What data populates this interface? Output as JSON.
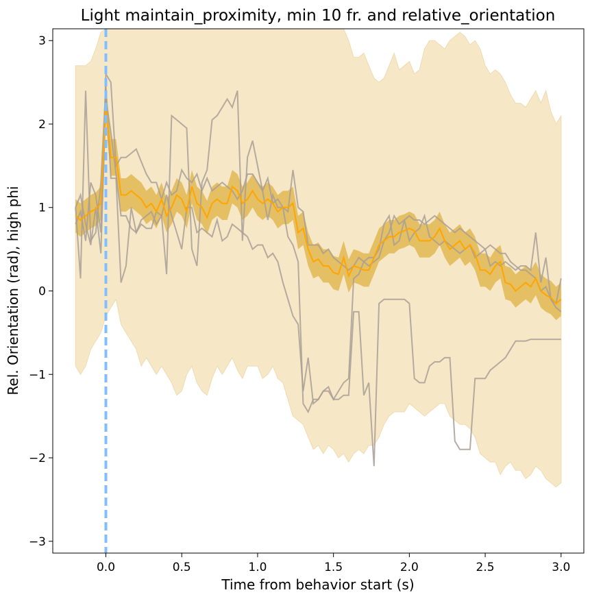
{
  "chart_data": {
    "type": "line",
    "title": "Light maintain_proximity, min 10 fr.  and  relative_orientation",
    "xlabel": "Time from behavior start (s)",
    "ylabel": "Rel. Orientation (rad), high phi",
    "xlim": [
      -0.35,
      3.15
    ],
    "ylim": [
      -3.14159,
      3.14159
    ],
    "x_ticks": [
      0.0,
      0.5,
      1.0,
      1.5,
      2.0,
      2.5,
      3.0
    ],
    "x_tick_labels": [
      "0.0",
      "0.5",
      "1.0",
      "1.5",
      "2.0",
      "2.5",
      "3.0"
    ],
    "y_ticks": [
      -3,
      -2,
      -1,
      0,
      1,
      2,
      3
    ],
    "y_tick_labels": [
      "−3",
      "−2",
      "−1",
      "0",
      "1",
      "2",
      "3"
    ],
    "grid": false,
    "vline_x": 0.0,
    "colors": {
      "mean": "#ffa500",
      "sem_band": "#daa520",
      "sd_band": "#f5e6c4",
      "individual": "#a89f95",
      "vline": "#80bfff"
    },
    "x": [
      -0.2,
      -0.167,
      -0.133,
      -0.1,
      -0.067,
      -0.033,
      0.0,
      0.033,
      0.067,
      0.1,
      0.133,
      0.167,
      0.2,
      0.233,
      0.267,
      0.3,
      0.333,
      0.367,
      0.4,
      0.433,
      0.467,
      0.5,
      0.533,
      0.567,
      0.6,
      0.633,
      0.667,
      0.7,
      0.733,
      0.767,
      0.8,
      0.833,
      0.867,
      0.9,
      0.933,
      0.967,
      1.0,
      1.033,
      1.067,
      1.1,
      1.133,
      1.167,
      1.2,
      1.233,
      1.267,
      1.3,
      1.333,
      1.367,
      1.4,
      1.433,
      1.467,
      1.5,
      1.533,
      1.567,
      1.6,
      1.633,
      1.667,
      1.7,
      1.733,
      1.767,
      1.8,
      1.833,
      1.867,
      1.9,
      1.933,
      1.967,
      2.0,
      2.033,
      2.067,
      2.1,
      2.133,
      2.167,
      2.2,
      2.233,
      2.267,
      2.3,
      2.333,
      2.367,
      2.4,
      2.433,
      2.467,
      2.5,
      2.533,
      2.567,
      2.6,
      2.633,
      2.667,
      2.7,
      2.733,
      2.767,
      2.8,
      2.833,
      2.867,
      2.9,
      2.933,
      2.967,
      3.0
    ],
    "mean": [
      0.9,
      0.85,
      0.9,
      0.95,
      0.98,
      1.05,
      2.25,
      1.6,
      1.6,
      1.15,
      1.15,
      1.2,
      1.15,
      1.1,
      1.0,
      1.05,
      0.95,
      1.1,
      0.9,
      1.0,
      1.15,
      1.1,
      0.95,
      1.25,
      1.05,
      1.0,
      0.88,
      1.05,
      1.1,
      1.05,
      1.05,
      1.25,
      1.2,
      1.05,
      1.1,
      1.2,
      1.1,
      1.05,
      1.1,
      1.05,
      0.95,
      1.0,
      1.0,
      1.05,
      0.7,
      0.75,
      0.5,
      0.35,
      0.38,
      0.3,
      0.3,
      0.22,
      0.2,
      0.4,
      0.18,
      0.3,
      0.28,
      0.25,
      0.25,
      0.4,
      0.55,
      0.6,
      0.65,
      0.65,
      0.7,
      0.72,
      0.75,
      0.72,
      0.6,
      0.6,
      0.6,
      0.65,
      0.75,
      0.6,
      0.5,
      0.55,
      0.6,
      0.5,
      0.55,
      0.45,
      0.25,
      0.25,
      0.2,
      0.3,
      0.35,
      0.1,
      0.08,
      0.0,
      0.05,
      0.1,
      0.05,
      0.15,
      0.0,
      -0.05,
      -0.08,
      -0.15,
      -0.1
    ],
    "sem": [
      0.2,
      0.2,
      0.2,
      0.2,
      0.2,
      0.2,
      0.25,
      0.22,
      0.22,
      0.2,
      0.2,
      0.2,
      0.2,
      0.2,
      0.2,
      0.2,
      0.2,
      0.2,
      0.2,
      0.2,
      0.2,
      0.2,
      0.2,
      0.2,
      0.2,
      0.2,
      0.2,
      0.2,
      0.2,
      0.2,
      0.2,
      0.2,
      0.2,
      0.2,
      0.2,
      0.2,
      0.2,
      0.2,
      0.2,
      0.2,
      0.2,
      0.2,
      0.2,
      0.2,
      0.2,
      0.2,
      0.2,
      0.2,
      0.2,
      0.2,
      0.2,
      0.2,
      0.2,
      0.2,
      0.2,
      0.2,
      0.2,
      0.2,
      0.2,
      0.2,
      0.2,
      0.2,
      0.2,
      0.2,
      0.2,
      0.2,
      0.2,
      0.2,
      0.2,
      0.2,
      0.2,
      0.2,
      0.2,
      0.2,
      0.2,
      0.2,
      0.2,
      0.2,
      0.2,
      0.2,
      0.2,
      0.2,
      0.2,
      0.2,
      0.2,
      0.2,
      0.2,
      0.2,
      0.2,
      0.2,
      0.2,
      0.2,
      0.2,
      0.2,
      0.2,
      0.2,
      0.2
    ],
    "sd_upper": [
      2.7,
      2.7,
      2.7,
      2.75,
      2.9,
      3.1,
      3.2,
      3.2,
      3.2,
      3.2,
      3.2,
      3.2,
      3.2,
      3.2,
      3.2,
      3.2,
      3.2,
      3.2,
      3.2,
      3.2,
      3.2,
      3.2,
      3.2,
      3.2,
      3.2,
      3.2,
      3.2,
      3.2,
      3.2,
      3.2,
      3.2,
      3.2,
      3.2,
      3.2,
      3.2,
      3.2,
      3.2,
      3.2,
      3.2,
      3.2,
      3.2,
      3.2,
      3.2,
      3.2,
      3.2,
      3.2,
      3.2,
      3.2,
      3.2,
      3.2,
      3.2,
      3.2,
      3.2,
      3.2,
      3.0,
      2.8,
      2.8,
      2.85,
      2.7,
      2.55,
      2.5,
      2.55,
      2.7,
      2.85,
      2.65,
      2.7,
      2.75,
      2.6,
      2.65,
      2.9,
      3.0,
      3.0,
      2.95,
      2.9,
      3.0,
      3.05,
      3.1,
      3.05,
      2.95,
      3.0,
      2.9,
      2.7,
      2.6,
      2.65,
      2.6,
      2.5,
      2.35,
      2.25,
      2.25,
      2.2,
      2.3,
      2.4,
      2.25,
      2.4,
      2.15,
      2.0,
      2.1
    ],
    "sd_lower": [
      -0.9,
      -1.0,
      -0.9,
      -0.7,
      -0.6,
      -0.5,
      -0.3,
      -0.2,
      -0.1,
      -0.4,
      -0.5,
      -0.6,
      -0.7,
      -0.9,
      -0.8,
      -0.9,
      -1.0,
      -0.9,
      -1.0,
      -1.1,
      -1.25,
      -1.2,
      -1.0,
      -0.9,
      -1.1,
      -1.2,
      -1.25,
      -1.05,
      -0.9,
      -1.0,
      -0.9,
      -0.8,
      -0.95,
      -1.05,
      -0.9,
      -0.9,
      -0.9,
      -1.05,
      -1.0,
      -0.9,
      -1.05,
      -1.1,
      -1.3,
      -1.5,
      -1.55,
      -1.6,
      -1.75,
      -1.9,
      -1.85,
      -1.95,
      -1.85,
      -1.9,
      -2.0,
      -1.95,
      -2.05,
      -1.95,
      -1.9,
      -1.95,
      -1.85,
      -1.85,
      -1.75,
      -1.6,
      -1.5,
      -1.45,
      -1.45,
      -1.45,
      -1.35,
      -1.4,
      -1.45,
      -1.5,
      -1.45,
      -1.4,
      -1.35,
      -1.35,
      -1.5,
      -1.55,
      -1.6,
      -1.6,
      -1.65,
      -1.75,
      -1.95,
      -2.0,
      -2.05,
      -2.05,
      -2.2,
      -2.1,
      -2.05,
      -2.15,
      -2.15,
      -2.25,
      -2.2,
      -2.1,
      -2.15,
      -2.25,
      -2.3,
      -2.35,
      -2.3
    ],
    "individual_series": [
      {
        "values": [
          0.8,
          0.95,
          0.6,
          1.3,
          1.15,
          0.7,
          2.6,
          2.5,
          1.5,
          1.6,
          1.6,
          1.65,
          1.7,
          1.55,
          1.4,
          1.3,
          1.3,
          1.1,
          1.3,
          1.15,
          1.2,
          1.45,
          1.35,
          1.3,
          1.4,
          1.2,
          1.35,
          1.2,
          1.25,
          1.3,
          1.25,
          1.2,
          1.1,
          1.2,
          1.4,
          1.4,
          1.3,
          1.2,
          1.35,
          1.05,
          1.1,
          1.0,
          0.95,
          1.45,
          1.0,
          0.95,
          0.55,
          0.55,
          0.55,
          0.45,
          0.5,
          0.4,
          0.35,
          0.3,
          0.25,
          0.3,
          0.4,
          0.35,
          0.3,
          0.35,
          0.4,
          0.6,
          0.7,
          0.9,
          0.8,
          0.85,
          0.9,
          0.85,
          0.85,
          0.8,
          0.85,
          0.9,
          0.85,
          0.8,
          0.75,
          0.7,
          0.75,
          0.7,
          0.65,
          0.6,
          0.55,
          0.5,
          0.55,
          0.5,
          0.45,
          0.45,
          0.35,
          0.3,
          0.25,
          0.25,
          0.2,
          0.15,
          0.0,
          0.05,
          -0.1,
          -0.2,
          -0.25
        ]
      },
      {
        "values": [
          1.0,
          0.15,
          2.4,
          0.6,
          0.7,
          1.3,
          2.45,
          1.35,
          1.35,
          0.1,
          0.3,
          1.0,
          0.7,
          0.85,
          0.9,
          0.95,
          0.8,
          0.9,
          0.2,
          2.1,
          2.05,
          2.0,
          1.95,
          0.5,
          0.3,
          1.3,
          1.45,
          2.05,
          2.1,
          2.2,
          2.3,
          2.2,
          2.4,
          0.6,
          1.6,
          1.8,
          1.5,
          1.2,
          0.85,
          1.15,
          1.0,
          1.0,
          0.65,
          0.55,
          0.35,
          -1.35,
          -1.45,
          -1.3,
          -1.3,
          -1.2,
          -1.2,
          -1.3,
          -1.3,
          -1.25,
          -1.25,
          -0.25,
          -0.25,
          -1.25,
          -1.1,
          -2.1,
          -0.15,
          -0.1,
          -0.1,
          -0.1,
          -0.1,
          -0.1,
          -0.15,
          -1.05,
          -1.1,
          -1.1,
          -0.9,
          -0.85,
          -0.85,
          -0.8,
          -0.8,
          -1.8,
          -1.9,
          -1.9,
          -1.9,
          -1.05,
          -1.05,
          -1.05,
          -0.95,
          -0.9,
          -0.85,
          -0.8,
          -0.7,
          -0.6,
          -0.6,
          -0.6,
          -0.58,
          -0.58,
          -0.58,
          -0.58,
          -0.58,
          -0.58,
          -0.58
        ]
      },
      {
        "values": [
          1.0,
          1.15,
          0.8,
          0.55,
          1.0,
          0.45,
          2.3,
          1.9,
          1.4,
          0.9,
          0.9,
          0.75,
          0.7,
          0.8,
          0.75,
          0.75,
          0.95,
          0.9,
          1.15,
          0.9,
          0.7,
          0.5,
          1.0,
          1.0,
          0.7,
          0.75,
          0.7,
          0.65,
          0.85,
          0.6,
          0.65,
          0.8,
          0.75,
          0.7,
          0.65,
          0.5,
          0.55,
          0.55,
          0.4,
          0.45,
          0.35,
          0.1,
          -0.1,
          -0.3,
          -0.4,
          -1.2,
          -0.8,
          -1.35,
          -1.3,
          -1.2,
          -1.15,
          -1.3,
          -1.2,
          -1.1,
          -1.05,
          0.15,
          0.2,
          0.35,
          0.4,
          0.4,
          0.5,
          0.8,
          0.9,
          0.55,
          0.6,
          0.85,
          0.6,
          0.7,
          0.75,
          0.9,
          0.65,
          0.6,
          0.55,
          0.6,
          0.55,
          0.5,
          0.45,
          0.5,
          0.55,
          0.4,
          0.45,
          0.5,
          0.3,
          0.35,
          0.3,
          0.35,
          0.3,
          0.25,
          0.3,
          0.3,
          0.25,
          0.7,
          0.1,
          0.4,
          -0.1,
          -0.15,
          0.15
        ]
      }
    ]
  }
}
